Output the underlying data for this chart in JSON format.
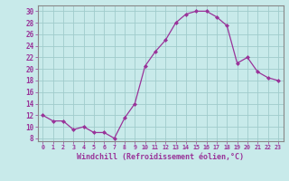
{
  "x": [
    0,
    1,
    2,
    3,
    4,
    5,
    6,
    7,
    8,
    9,
    10,
    11,
    12,
    13,
    14,
    15,
    16,
    17,
    18,
    19,
    20,
    21,
    22,
    23
  ],
  "y": [
    12,
    11,
    11,
    9.5,
    10,
    9,
    9,
    8,
    11.5,
    14,
    20.5,
    23,
    25,
    28,
    29.5,
    30,
    30,
    29,
    27.5,
    21,
    22,
    19.5,
    18.5,
    18
  ],
  "line_color": "#993399",
  "marker": "D",
  "marker_size": 2,
  "bg_color": "#c8eaea",
  "grid_color": "#a0cccc",
  "xlabel": "Windchill (Refroidissement éolien,°C)",
  "ylim": [
    7.5,
    31
  ],
  "yticks": [
    8,
    10,
    12,
    14,
    16,
    18,
    20,
    22,
    24,
    26,
    28,
    30
  ],
  "xticks": [
    0,
    1,
    2,
    3,
    4,
    5,
    6,
    7,
    8,
    9,
    10,
    11,
    12,
    13,
    14,
    15,
    16,
    17,
    18,
    19,
    20,
    21,
    22,
    23
  ]
}
